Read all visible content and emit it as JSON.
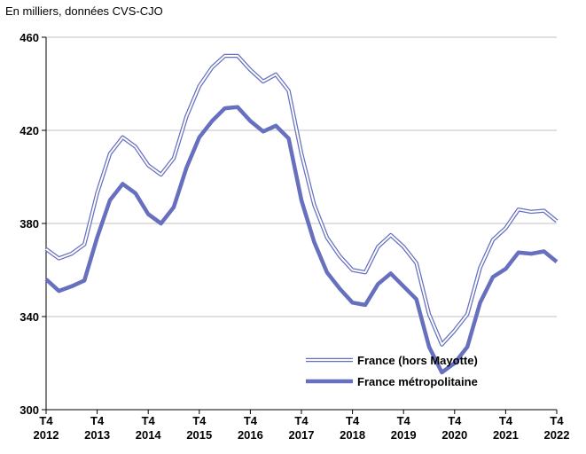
{
  "chart_data": {
    "type": "line",
    "subtitle": "En milliers, données CVS-CJO",
    "categories": [
      [
        "T4",
        "2012"
      ],
      null,
      null,
      null,
      [
        "T4",
        "2013"
      ],
      null,
      null,
      null,
      [
        "T4",
        "2014"
      ],
      null,
      null,
      null,
      [
        "T4",
        "2015"
      ],
      null,
      null,
      null,
      [
        "T4",
        "2016"
      ],
      null,
      null,
      null,
      [
        "T4",
        "2017"
      ],
      null,
      null,
      null,
      [
        "T4",
        "2018"
      ],
      null,
      null,
      null,
      [
        "T4",
        "2019"
      ],
      null,
      null,
      null,
      [
        "T4",
        "2020"
      ],
      null,
      null,
      null,
      [
        "T4",
        "2021"
      ],
      null,
      null,
      null,
      [
        "T4",
        "2022"
      ]
    ],
    "series": [
      {
        "name": "France (hors Mayotte)",
        "color": "#6670bf",
        "style": "double",
        "values": [
          369,
          365,
          367,
          371,
          393,
          410,
          417,
          413,
          405,
          401,
          408,
          426,
          439,
          447,
          452,
          452,
          446,
          441,
          444,
          437,
          410,
          388,
          374,
          366,
          360,
          359,
          370,
          375,
          370,
          363,
          341,
          328,
          334,
          341,
          361,
          373,
          378,
          386,
          385,
          385.5,
          381
        ]
      },
      {
        "name": "France métropolitaine",
        "color": "#6670bf",
        "style": "solid",
        "values": [
          356,
          351,
          353,
          355.5,
          374,
          390,
          397,
          393,
          384,
          380,
          387,
          404,
          417,
          424,
          429.5,
          430,
          424,
          419.5,
          422,
          416.5,
          390,
          372,
          359,
          352,
          346,
          345,
          354,
          358.5,
          353,
          347.5,
          327,
          316,
          320,
          327,
          346,
          357,
          360.5,
          367.5,
          367,
          368,
          363.5
        ]
      }
    ],
    "ylim": [
      300,
      460
    ],
    "yticks": [
      300,
      340,
      380,
      420,
      460
    ],
    "grid": true,
    "legend": "lower center"
  }
}
